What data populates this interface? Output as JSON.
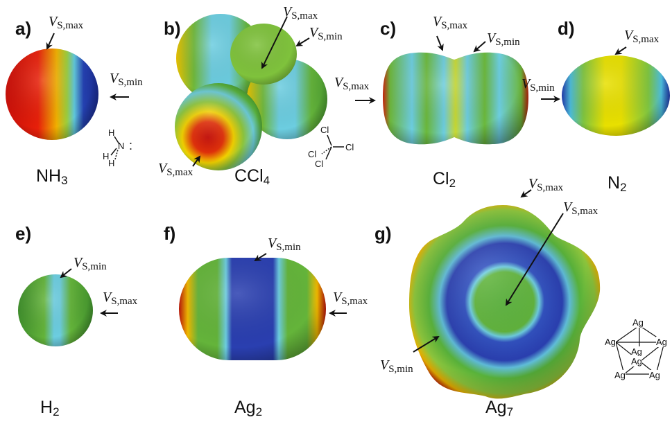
{
  "panels": [
    {
      "id": "a",
      "label": "a)",
      "molecule": "NH",
      "subscript": "3"
    },
    {
      "id": "b",
      "label": "b)",
      "molecule": "CCl",
      "subscript": "4"
    },
    {
      "id": "c",
      "label": "c)",
      "molecule": "Cl",
      "subscript": "2"
    },
    {
      "id": "d",
      "label": "d)",
      "molecule": "N",
      "subscript": "2"
    },
    {
      "id": "e",
      "label": "e)",
      "molecule": "H",
      "subscript": "2"
    },
    {
      "id": "f",
      "label": "f)",
      "molecule": "Ag",
      "subscript": "2"
    },
    {
      "id": "g",
      "label": "g)",
      "molecule": "Ag",
      "subscript": "7"
    }
  ],
  "annotations": {
    "symbol": "V",
    "max_sub": "S,max",
    "min_sub": "S,min"
  },
  "structures": {
    "nh3": {
      "n": "N",
      "h": "H",
      "lone_pair": ":"
    },
    "ccl4": {
      "c": "C",
      "cl": "Cl"
    },
    "ag7": {
      "ag": "Ag"
    }
  },
  "colors": {
    "red": "#d81e05",
    "yellow": "#f2e600",
    "green": "#5ab53c",
    "cyan": "#6ccde0",
    "blue": "#2a3fb0",
    "dark_red": "#7a1a05"
  }
}
